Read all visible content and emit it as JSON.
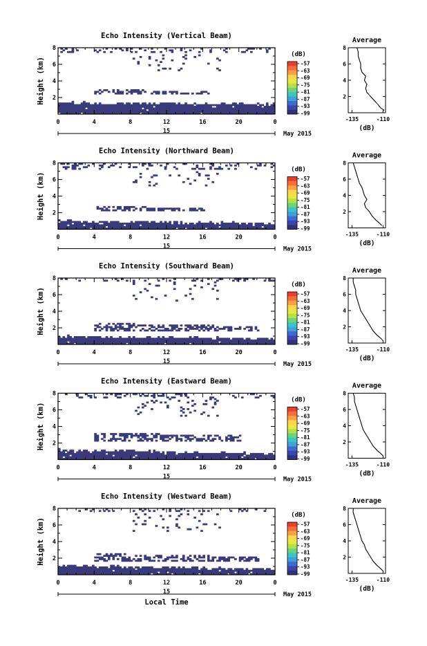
{
  "chart_data": [
    {
      "type": "heatmap",
      "title": "Echo Intensity (Vertical Beam)",
      "ylabel": "Height (km)",
      "xlim": [
        0,
        24
      ],
      "ylim": [
        0,
        8
      ],
      "x_ticks": [
        "0",
        "4",
        "8",
        "12",
        "16",
        "20",
        "0"
      ],
      "y_ticks": [
        "2",
        "4",
        "6",
        "8"
      ],
      "date_label": "15",
      "month_label": "May 2015",
      "colorbar_unit": "(dB)",
      "colorbar_labels": [
        "-57",
        "-63",
        "-69",
        "-75",
        "-81",
        "-87",
        "-93",
        "-99"
      ],
      "profile": {
        "title": "Average",
        "xlabel": "(dB)",
        "x_ticks": [
          "-135",
          "-110"
        ],
        "y_ticks": [
          "2",
          "4",
          "6",
          "8"
        ],
        "x": [
          -109,
          -112,
          -114,
          -117,
          -120,
          -123,
          -124,
          -123,
          -125,
          -124,
          -127,
          -128,
          -128,
          -129,
          -130,
          -130,
          -131
        ],
        "y": [
          0.3,
          0.6,
          1.0,
          1.5,
          2.0,
          2.5,
          3.0,
          3.5,
          4.0,
          4.5,
          5.0,
          5.5,
          6.0,
          6.5,
          7.0,
          7.5,
          8.0
        ]
      }
    },
    {
      "type": "heatmap",
      "title": "Echo Intensity (Northward Beam)",
      "ylabel": "Height (km)",
      "xlim": [
        0,
        24
      ],
      "ylim": [
        0,
        8
      ],
      "x_ticks": [
        "0",
        "4",
        "8",
        "12",
        "16",
        "20",
        "0"
      ],
      "y_ticks": [
        "2",
        "4",
        "6",
        "8"
      ],
      "date_label": "15",
      "month_label": "May 2015",
      "colorbar_unit": "(dB)",
      "colorbar_labels": [
        "-57",
        "-63",
        "-69",
        "-75",
        "-81",
        "-87",
        "-93",
        "-99"
      ],
      "profile": {
        "title": "Average",
        "xlabel": "(dB)",
        "x_ticks": [
          "-135",
          "-110"
        ],
        "y_ticks": [
          "2",
          "4",
          "6",
          "8"
        ],
        "x": [
          -111,
          -113,
          -116,
          -119,
          -121,
          -124,
          -125,
          -123,
          -125,
          -126,
          -127,
          -129,
          -130,
          -131,
          -132,
          -133,
          -134
        ],
        "y": [
          0.3,
          0.6,
          1.0,
          1.5,
          2.0,
          2.5,
          3.0,
          3.5,
          4.0,
          4.5,
          5.0,
          5.5,
          6.0,
          6.5,
          7.0,
          7.5,
          8.0
        ]
      }
    },
    {
      "type": "heatmap",
      "title": "Echo Intensity (Southward Beam)",
      "ylabel": "Height (km)",
      "xlim": [
        0,
        24
      ],
      "ylim": [
        0,
        8
      ],
      "x_ticks": [
        "0",
        "4",
        "8",
        "12",
        "16",
        "20",
        "0"
      ],
      "y_ticks": [
        "2",
        "4",
        "6",
        "8"
      ],
      "date_label": "15",
      "month_label": "May 2015",
      "colorbar_unit": "(dB)",
      "colorbar_labels": [
        "-57",
        "-63",
        "-69",
        "-75",
        "-81",
        "-87",
        "-93",
        "-99"
      ],
      "profile": {
        "title": "Average",
        "xlabel": "(dB)",
        "x_ticks": [
          "-135",
          "-110"
        ],
        "y_ticks": [
          "2",
          "4",
          "6",
          "8"
        ],
        "x": [
          -110,
          -112,
          -115,
          -118,
          -120,
          -122,
          -124,
          -126,
          -128,
          -129,
          -130,
          -131,
          -132,
          -132,
          -133,
          -134,
          -134
        ],
        "y": [
          0.3,
          0.6,
          1.0,
          1.5,
          2.0,
          2.5,
          3.0,
          3.5,
          4.0,
          4.5,
          5.0,
          5.5,
          6.0,
          6.5,
          7.0,
          7.5,
          8.0
        ]
      }
    },
    {
      "type": "heatmap",
      "title": "Echo Intensity (Eastward Beam)",
      "ylabel": "Height (km)",
      "xlim": [
        0,
        24
      ],
      "ylim": [
        0,
        8
      ],
      "x_ticks": [
        "0",
        "4",
        "8",
        "12",
        "16",
        "20",
        "0"
      ],
      "y_ticks": [
        "2",
        "4",
        "6",
        "8"
      ],
      "date_label": "15",
      "month_label": "May 2015",
      "colorbar_unit": "(dB)",
      "colorbar_labels": [
        "-57",
        "-63",
        "-69",
        "-75",
        "-81",
        "-87",
        "-93",
        "-99"
      ],
      "profile": {
        "title": "Average",
        "xlabel": "(dB)",
        "x_ticks": [
          "-135",
          "-110"
        ],
        "y_ticks": [
          "2",
          "4",
          "6",
          "8"
        ],
        "x": [
          -110,
          -112,
          -115,
          -118,
          -120,
          -122,
          -124,
          -126,
          -127,
          -128,
          -129,
          -130,
          -131,
          -132,
          -133,
          -133,
          -134
        ],
        "y": [
          0.3,
          0.6,
          1.0,
          1.5,
          2.0,
          2.5,
          3.0,
          3.5,
          4.0,
          4.5,
          5.0,
          5.5,
          6.0,
          6.5,
          7.0,
          7.5,
          8.0
        ]
      }
    },
    {
      "type": "heatmap",
      "title": "Echo Intensity (Westward Beam)",
      "ylabel": "Height (km)",
      "xlim": [
        0,
        24
      ],
      "ylim": [
        0,
        8
      ],
      "x_ticks": [
        "0",
        "4",
        "8",
        "12",
        "16",
        "20",
        "0"
      ],
      "y_ticks": [
        "2",
        "4",
        "6",
        "8"
      ],
      "date_label": "15",
      "month_label": "May 2015",
      "xlabel": "Local Time",
      "colorbar_unit": "(dB)",
      "colorbar_labels": [
        "-57",
        "-63",
        "-69",
        "-75",
        "-81",
        "-87",
        "-93",
        "-99"
      ],
      "profile": {
        "title": "Average",
        "xlabel": "(dB)",
        "x_ticks": [
          "-135",
          "-110"
        ],
        "y_ticks": [
          "2",
          "4",
          "6",
          "8"
        ],
        "x": [
          -110,
          -112,
          -115,
          -118,
          -120,
          -122,
          -124,
          -125,
          -127,
          -128,
          -129,
          -130,
          -131,
          -132,
          -133,
          -134,
          -134
        ],
        "y": [
          0.3,
          0.6,
          1.0,
          1.5,
          2.0,
          2.5,
          3.0,
          3.5,
          4.0,
          4.5,
          5.0,
          5.5,
          6.0,
          6.5,
          7.0,
          7.5,
          8.0
        ]
      }
    }
  ],
  "colors": {
    "echo_fill": "#3b3b7a",
    "echo_speck": "#2a3aa8",
    "axis": "#000000",
    "colorbar": [
      "#e8402a",
      "#f46d3a",
      "#fba040",
      "#fdd54c",
      "#e8e840",
      "#b4e04a",
      "#6cd37a",
      "#3dc4c4",
      "#41a0dc",
      "#3c6ccf",
      "#3a45b0",
      "#32327a"
    ]
  }
}
